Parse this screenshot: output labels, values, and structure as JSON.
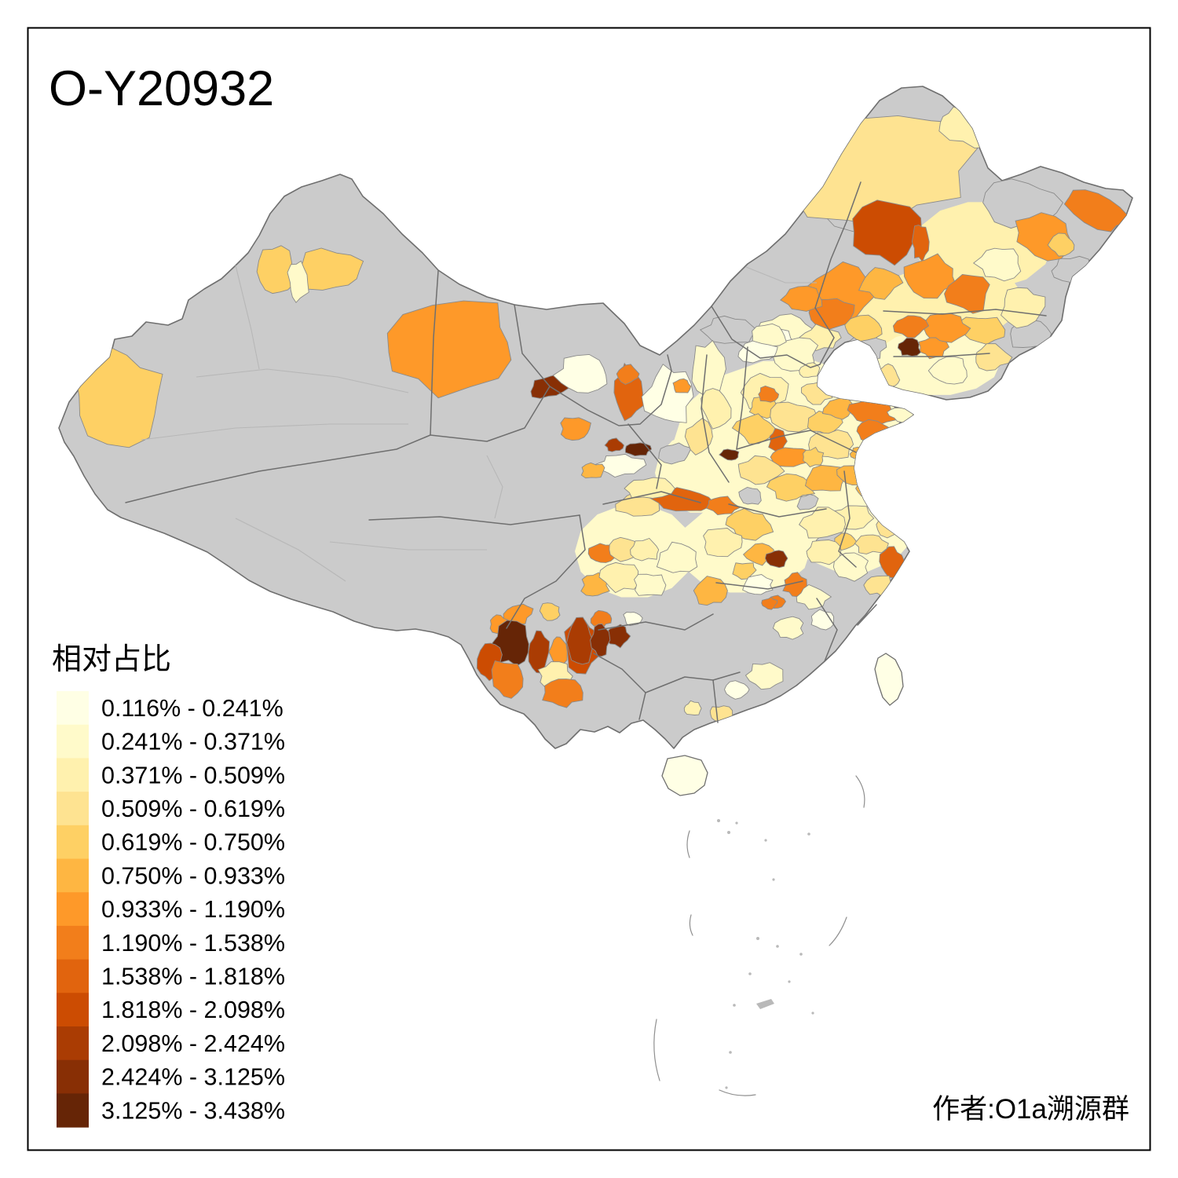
{
  "title": "O-Y20932",
  "attribution": "作者:O1a溯源群",
  "legend": {
    "title": "相对占比",
    "no_data_color": "#CBCBCB",
    "items": [
      {
        "label": "0.116% - 0.241%",
        "color": "#FFFFE5"
      },
      {
        "label": "0.241% - 0.371%",
        "color": "#FFFACA"
      },
      {
        "label": "0.371% - 0.509%",
        "color": "#FFF1AE"
      },
      {
        "label": "0.509% - 0.619%",
        "color": "#FEE391"
      },
      {
        "label": "0.619% - 0.750%",
        "color": "#FED064"
      },
      {
        "label": "0.750% - 0.933%",
        "color": "#FEB642"
      },
      {
        "label": "0.933% - 1.190%",
        "color": "#FE9929"
      },
      {
        "label": "1.190% - 1.538%",
        "color": "#F27E1B"
      },
      {
        "label": "1.538% - 1.818%",
        "color": "#E1640E"
      },
      {
        "label": "1.818% - 2.098%",
        "color": "#CC4C02"
      },
      {
        "label": "2.098% - 2.424%",
        "color": "#AA3C03"
      },
      {
        "label": "2.424% - 3.125%",
        "color": "#882F05"
      },
      {
        "label": "3.125% - 3.438%",
        "color": "#662506"
      }
    ]
  },
  "chart_data": {
    "type": "choropleth",
    "map_region": "China, prefecture-level divisions",
    "measure": "相对占比",
    "title": "O-Y20932",
    "legend_position": "bottom-left",
    "no_data_color": "#CBCBCB",
    "classes": [
      "0.116% - 0.241%",
      "0.241% - 0.371%",
      "0.371% - 0.509%",
      "0.509% - 0.619%",
      "0.619% - 0.750%",
      "0.750% - 0.933%",
      "0.933% - 1.190%",
      "1.190% - 1.538%",
      "1.538% - 1.818%",
      "1.818% - 2.098%",
      "2.098% - 2.424%",
      "2.424% - 3.125%",
      "3.125% - 3.438%"
    ]
  },
  "map": {
    "regions_format": "[x, y, rx, ry, rotation_deg, class_level(0=no-data), smooth_wash]",
    "regions": [
      [
        1005,
        565,
        148,
        108,
        0,
        2,
        1
      ],
      [
        1085,
        652,
        88,
        78,
        0,
        2,
        1
      ],
      [
        948,
        698,
        85,
        58,
        0,
        2,
        1
      ],
      [
        808,
        702,
        76,
        60,
        0,
        2,
        1
      ],
      [
        1192,
        392,
        112,
        52,
        -8,
        3,
        1
      ],
      [
        1252,
        312,
        88,
        56,
        0,
        3,
        1
      ],
      [
        1192,
        462,
        82,
        42,
        0,
        2,
        1
      ],
      [
        892,
        602,
        58,
        52,
        0,
        2,
        1
      ],
      [
        930,
        420,
        32,
        17,
        0,
        0,
        0
      ],
      [
        1105,
        442,
        22,
        16,
        0,
        0,
        0
      ],
      [
        1300,
        258,
        48,
        28,
        0,
        0,
        0
      ],
      [
        1368,
        345,
        26,
        17,
        0,
        0,
        0
      ],
      [
        1308,
        425,
        26,
        19,
        0,
        0,
        0
      ],
      [
        1080,
        272,
        40,
        22,
        25,
        0,
        0
      ],
      [
        860,
        577,
        20,
        13,
        0,
        0,
        0
      ],
      [
        1062,
        688,
        20,
        14,
        0,
        0,
        0
      ],
      [
        1028,
        640,
        13,
        10,
        0,
        0,
        0
      ],
      [
        955,
        632,
        14,
        11,
        0,
        0,
        0
      ],
      [
        1190,
        190,
        12,
        8,
        0,
        0,
        0
      ],
      [
        1135,
        215,
        112,
        66,
        -14,
        4,
        0
      ],
      [
        1228,
        163,
        36,
        20,
        28,
        3,
        0
      ],
      [
        1128,
        296,
        42,
        36,
        0,
        10,
        0
      ],
      [
        1172,
        308,
        10,
        22,
        0,
        9,
        0
      ],
      [
        1068,
        372,
        48,
        34,
        -10,
        7,
        0
      ],
      [
        1120,
        360,
        25,
        19,
        0,
        6,
        0
      ],
      [
        1185,
        352,
        34,
        25,
        0,
        7,
        0
      ],
      [
        1232,
        374,
        27,
        23,
        0,
        8,
        0
      ],
      [
        1272,
        335,
        27,
        21,
        0,
        2,
        0
      ],
      [
        1330,
        302,
        37,
        27,
        10,
        7,
        0
      ],
      [
        1398,
        268,
        40,
        21,
        25,
        8,
        0
      ],
      [
        1352,
        312,
        16,
        13,
        0,
        5,
        0
      ],
      [
        1302,
        390,
        28,
        24,
        0,
        3,
        0
      ],
      [
        1250,
        420,
        28,
        18,
        0,
        5,
        0
      ],
      [
        1205,
        418,
        28,
        18,
        0,
        7,
        0
      ],
      [
        1160,
        415,
        20,
        15,
        0,
        8,
        0
      ],
      [
        1262,
        455,
        23,
        16,
        0,
        4,
        0
      ],
      [
        1188,
        442,
        17,
        13,
        0,
        7,
        0
      ],
      [
        1158,
        443,
        14,
        11,
        0,
        13,
        0
      ],
      [
        1210,
        472,
        24,
        18,
        0,
        2,
        0
      ],
      [
        1133,
        477,
        10,
        16,
        -35,
        4,
        0
      ],
      [
        1100,
        418,
        24,
        16,
        0,
        5,
        0
      ],
      [
        1060,
        398,
        28,
        20,
        0,
        8,
        0
      ],
      [
        1022,
        382,
        24,
        16,
        0,
        7,
        0
      ],
      [
        878,
        368,
        27,
        19,
        0,
        7,
        0
      ],
      [
        838,
        386,
        16,
        12,
        0,
        6,
        0
      ],
      [
        1000,
        420,
        33,
        20,
        0,
        2,
        0
      ],
      [
        1045,
        430,
        23,
        15,
        0,
        3,
        0
      ],
      [
        985,
        438,
        26,
        18,
        0,
        1,
        0
      ],
      [
        1012,
        452,
        28,
        24,
        0,
        2,
        0
      ],
      [
        1032,
        472,
        13,
        9,
        0,
        3,
        0
      ],
      [
        978,
        428,
        24,
        16,
        0,
        2,
        0
      ],
      [
        965,
        448,
        26,
        13,
        0,
        1,
        0
      ],
      [
        1040,
        500,
        19,
        13,
        0,
        4,
        0
      ],
      [
        975,
        500,
        28,
        22,
        0,
        3,
        0
      ],
      [
        972,
        518,
        17,
        13,
        0,
        5,
        0
      ],
      [
        978,
        502,
        13,
        9,
        0,
        8,
        0
      ],
      [
        1010,
        530,
        28,
        18,
        0,
        4,
        0
      ],
      [
        960,
        545,
        24,
        18,
        0,
        5,
        0
      ],
      [
        1048,
        538,
        22,
        14,
        0,
        5,
        0
      ],
      [
        1068,
        520,
        20,
        13,
        0,
        6,
        0
      ],
      [
        1112,
        525,
        31,
        15,
        5,
        8,
        0
      ],
      [
        1148,
        528,
        16,
        9,
        10,
        2,
        0
      ],
      [
        1112,
        549,
        24,
        13,
        0,
        8,
        0
      ],
      [
        1095,
        578,
        13,
        9,
        0,
        6,
        0
      ],
      [
        1060,
        566,
        28,
        18,
        0,
        4,
        0
      ],
      [
        929,
        579,
        11,
        7,
        0,
        13,
        0
      ],
      [
        902,
        470,
        22,
        33,
        0,
        2,
        0
      ],
      [
        912,
        520,
        18,
        24,
        0,
        3,
        0
      ],
      [
        890,
        556,
        16,
        20,
        0,
        4,
        0
      ],
      [
        990,
        562,
        11,
        15,
        0,
        9,
        0
      ],
      [
        1005,
        582,
        26,
        13,
        0,
        7,
        0
      ],
      [
        968,
        600,
        26,
        17,
        0,
        4,
        0
      ],
      [
        1008,
        620,
        28,
        17,
        0,
        5,
        0
      ],
      [
        1035,
        582,
        14,
        11,
        0,
        5,
        0
      ],
      [
        1052,
        610,
        26,
        17,
        0,
        6,
        0
      ],
      [
        1090,
        605,
        23,
        14,
        0,
        6,
        0
      ],
      [
        1108,
        622,
        16,
        11,
        0,
        6,
        0
      ],
      [
        1118,
        634,
        22,
        16,
        0,
        5,
        0
      ],
      [
        1135,
        668,
        20,
        15,
        0,
        4,
        0
      ],
      [
        1085,
        660,
        26,
        17,
        0,
        3,
        0
      ],
      [
        1048,
        668,
        26,
        19,
        0,
        3,
        0
      ],
      [
        1075,
        690,
        14,
        11,
        0,
        5,
        0
      ],
      [
        1108,
        692,
        20,
        13,
        0,
        4,
        0
      ],
      [
        1135,
        715,
        14,
        18,
        0,
        9,
        0
      ],
      [
        1120,
        745,
        17,
        13,
        0,
        4,
        0
      ],
      [
        1082,
        722,
        23,
        16,
        0,
        2,
        0
      ],
      [
        1050,
        702,
        23,
        15,
        0,
        3,
        0
      ],
      [
        955,
        668,
        28,
        18,
        0,
        5,
        0
      ],
      [
        920,
        690,
        26,
        17,
        0,
        3,
        0
      ],
      [
        948,
        726,
        15,
        10,
        0,
        5,
        0
      ],
      [
        966,
        706,
        19,
        13,
        0,
        6,
        0
      ],
      [
        989,
        711,
        13,
        11,
        0,
        12,
        0
      ],
      [
        1012,
        745,
        14,
        14,
        0,
        8,
        0
      ],
      [
        988,
        766,
        11,
        8,
        0,
        8,
        0
      ],
      [
        1035,
        760,
        20,
        14,
        0,
        2,
        0
      ],
      [
        1005,
        800,
        18,
        14,
        0,
        2,
        0
      ],
      [
        1048,
        790,
        16,
        12,
        0,
        1,
        0
      ],
      [
        965,
        745,
        18,
        12,
        0,
        1,
        0
      ],
      [
        975,
        860,
        24,
        17,
        0,
        2,
        0
      ],
      [
        940,
        878,
        15,
        11,
        0,
        1,
        0
      ],
      [
        918,
        910,
        15,
        11,
        0,
        4,
        0
      ],
      [
        882,
        902,
        11,
        9,
        0,
        3,
        0
      ],
      [
        812,
        642,
        26,
        16,
        0,
        4,
        0
      ],
      [
        870,
        637,
        36,
        14,
        4,
        9,
        0
      ],
      [
        920,
        644,
        20,
        11,
        6,
        8,
        0
      ],
      [
        825,
        622,
        30,
        14,
        0,
        3,
        0
      ],
      [
        768,
        705,
        17,
        13,
        0,
        8,
        0
      ],
      [
        758,
        745,
        17,
        15,
        0,
        6,
        0
      ],
      [
        795,
        700,
        21,
        15,
        0,
        4,
        0
      ],
      [
        822,
        700,
        19,
        13,
        0,
        3,
        0
      ],
      [
        790,
        735,
        24,
        17,
        0,
        3,
        0
      ],
      [
        828,
        745,
        21,
        15,
        0,
        2,
        0
      ],
      [
        862,
        712,
        24,
        19,
        0,
        2,
        0
      ],
      [
        905,
        752,
        21,
        19,
        0,
        6,
        0
      ],
      [
        980,
        768,
        9,
        7,
        0,
        8,
        0
      ],
      [
        740,
        820,
        22,
        33,
        0,
        10,
        0
      ],
      [
        786,
        810,
        15,
        13,
        0,
        12,
        0
      ],
      [
        765,
        788,
        12,
        10,
        0,
        8,
        0
      ],
      [
        660,
        782,
        17,
        13,
        -20,
        7,
        0
      ],
      [
        635,
        795,
        11,
        11,
        0,
        7,
        0
      ],
      [
        700,
        778,
        13,
        11,
        0,
        5,
        0
      ],
      [
        652,
        820,
        24,
        26,
        0,
        13,
        0
      ],
      [
        624,
        842,
        14,
        23,
        10,
        10,
        0
      ],
      [
        646,
        864,
        21,
        24,
        0,
        8,
        0
      ],
      [
        686,
        830,
        13,
        26,
        0,
        11,
        0
      ],
      [
        711,
        830,
        11,
        22,
        0,
        7,
        0
      ],
      [
        707,
        861,
        21,
        17,
        0,
        3,
        0
      ],
      [
        716,
        882,
        24,
        19,
        0,
        8,
        0
      ],
      [
        738,
        818,
        16,
        28,
        0,
        11,
        0
      ],
      [
        764,
        815,
        11,
        21,
        0,
        12,
        0
      ],
      [
        805,
        787,
        11,
        9,
        0,
        1,
        0
      ],
      [
        575,
        442,
        86,
        55,
        -5,
        7,
        0
      ],
      [
        700,
        492,
        24,
        14,
        -15,
        12,
        0
      ],
      [
        742,
        478,
        33,
        24,
        0,
        1,
        0
      ],
      [
        733,
        546,
        19,
        15,
        0,
        7,
        0
      ],
      [
        800,
        500,
        19,
        34,
        0,
        9,
        0
      ],
      [
        800,
        476,
        14,
        12,
        0,
        8,
        0
      ],
      [
        852,
        505,
        30,
        36,
        0,
        1,
        0
      ],
      [
        868,
        492,
        11,
        9,
        0,
        7,
        0
      ],
      [
        812,
        572,
        16,
        9,
        0,
        13,
        0
      ],
      [
        782,
        567,
        11,
        8,
        0,
        11,
        0
      ],
      [
        790,
        592,
        28,
        14,
        0,
        1,
        0
      ],
      [
        756,
        600,
        15,
        10,
        0,
        6,
        0
      ],
      [
        352,
        346,
        25,
        32,
        0,
        5,
        0
      ],
      [
        420,
        345,
        43,
        26,
        0,
        5,
        0
      ],
      [
        380,
        360,
        13,
        25,
        0,
        2,
        0
      ],
      [
        150,
        505,
        54,
        56,
        0,
        5,
        0
      ]
    ],
    "islands": [
      {
        "name": "taiwan",
        "level": 1
      },
      {
        "name": "hainan",
        "level": 1
      }
    ]
  }
}
